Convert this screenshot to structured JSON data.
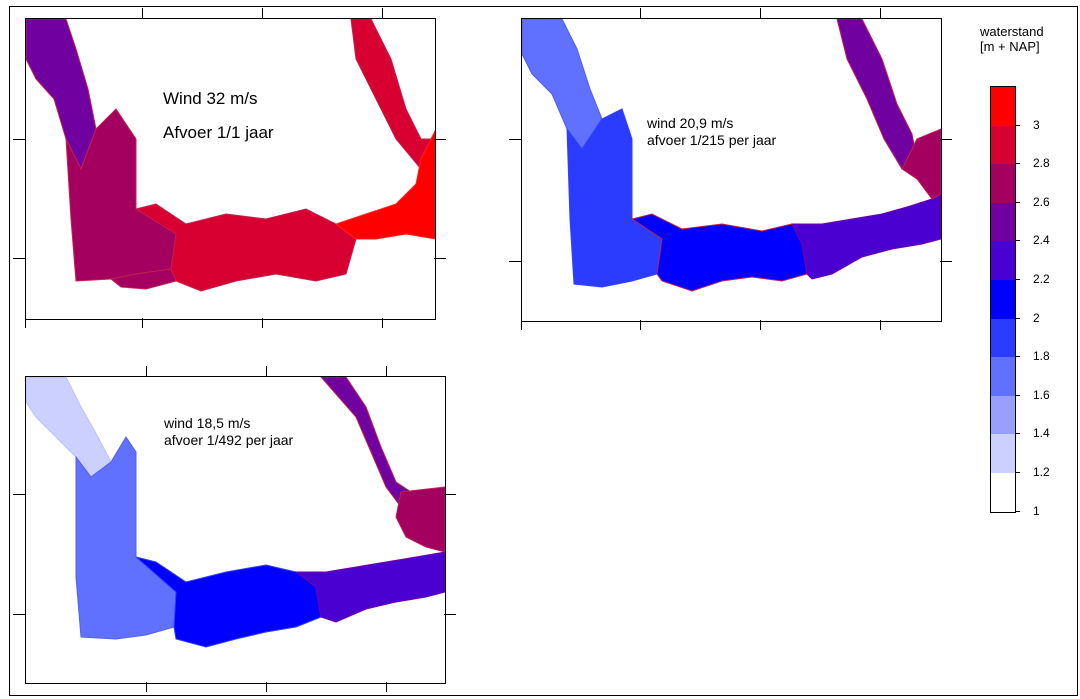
{
  "panels": [
    {
      "id": "p1",
      "line1": "Wind 32 m/s",
      "line2": "Afvoer 1/1 jaar"
    },
    {
      "id": "p2",
      "line1": "wind 20,9 m/s",
      "line2": "afvoer 1/215 per jaar"
    },
    {
      "id": "p3",
      "line1": "wind 18,5 m/s",
      "line2": "afvoer 1/492 per jaar"
    }
  ],
  "legend": {
    "title_line1": "waterstand",
    "title_line2": "[m + NAP]",
    "levels": [
      "3",
      "2.8",
      "2.6",
      "2.4",
      "2.2",
      "2",
      "1.8",
      "1.6",
      "1.4",
      "1.2",
      "1"
    ],
    "colors": [
      "#ff0000",
      "#d80030",
      "#a40060",
      "#7000a0",
      "#4a00d0",
      "#0000ff",
      "#2c3cff",
      "#6070ff",
      "#98a0ff",
      "#ccd0ff",
      "#ffffff"
    ]
  }
}
